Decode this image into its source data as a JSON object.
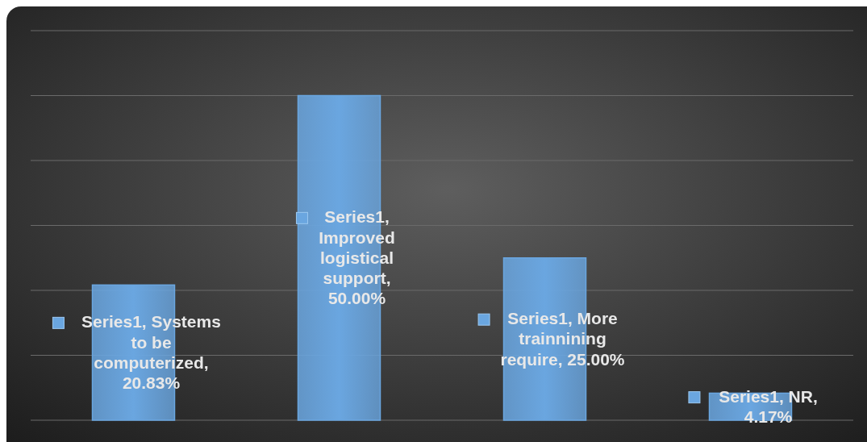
{
  "chart_data": {
    "type": "bar",
    "categories": [
      null,
      null,
      null,
      null
    ],
    "series": [
      {
        "color": "#6aa6e0",
        "values": [
          20.83,
          50.0,
          25.0,
          4.17
        ],
        "value_labels": [
          "Series1, Systems to be computerized, 20.83%",
          "Series1, Improved logistical support, 50.00%",
          "Series1, More trainnining require, 25.00%",
          "Series1, NR, 4.17%"
        ]
      }
    ],
    "ylim": [
      0,
      60
    ],
    "yticks": [
      {
        "value": 0,
        "label": null
      },
      {
        "value": 10,
        "label": null
      },
      {
        "value": 20,
        "label": null
      },
      {
        "value": 30,
        "label": null
      },
      {
        "value": 40,
        "label": null
      },
      {
        "value": 50,
        "label": null
      },
      {
        "value": 60,
        "label": null
      }
    ],
    "grid": "y",
    "data_labels": true,
    "legend": false
  }
}
